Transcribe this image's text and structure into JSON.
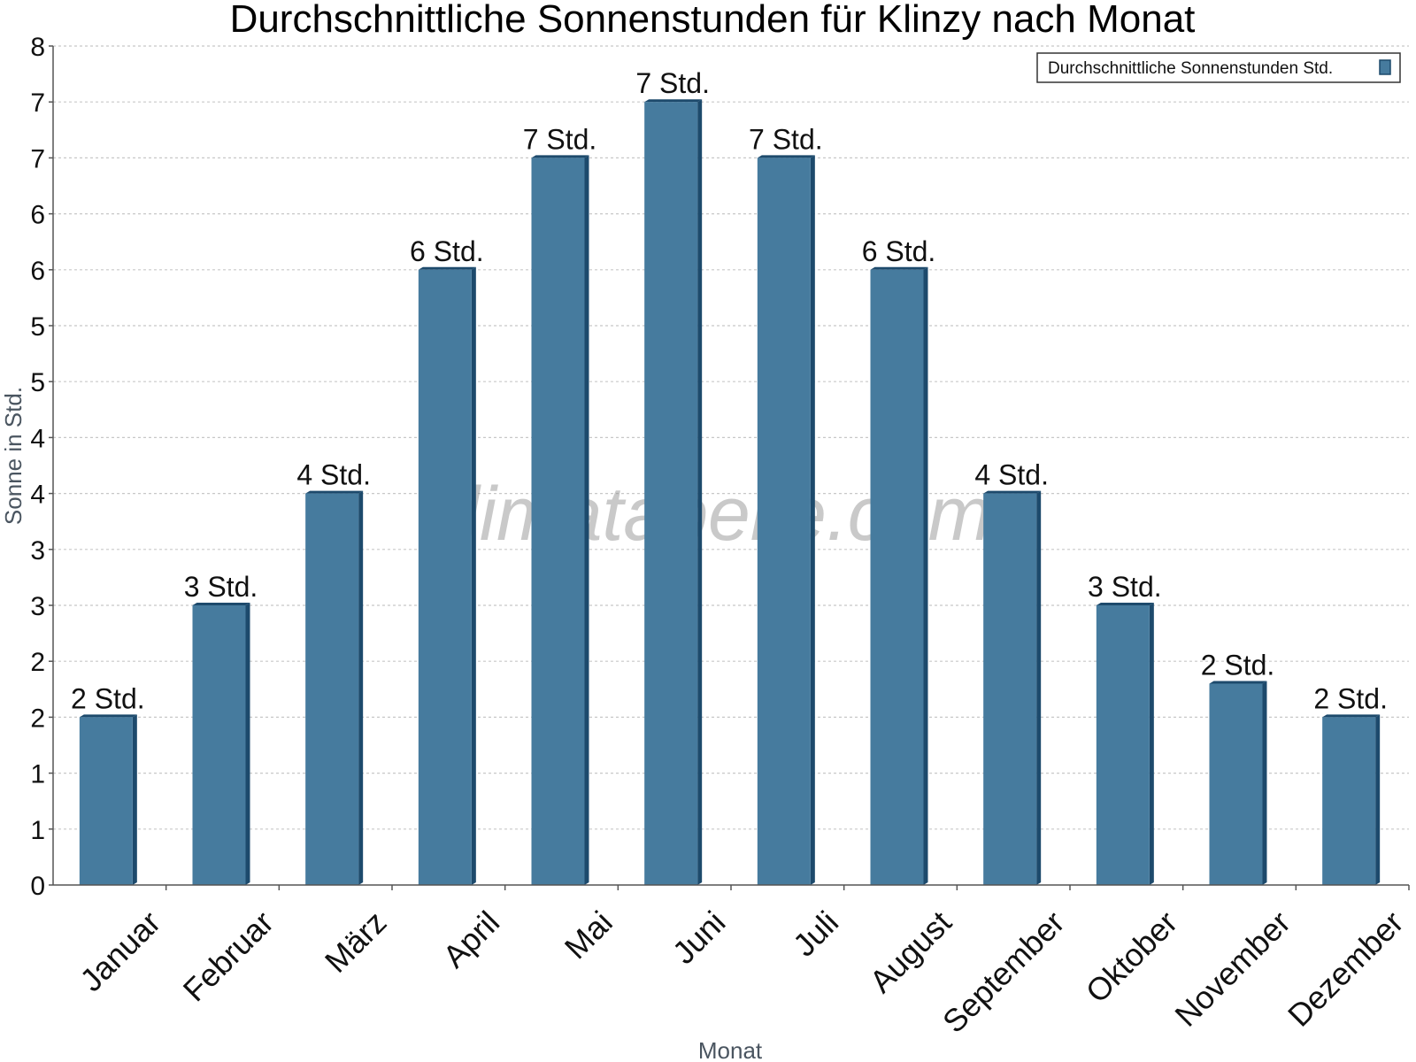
{
  "chart_data": {
    "type": "bar",
    "title": "Durchschnittliche Sonnenstunden für Klinzy nach Monat",
    "xlabel": "Monat",
    "ylabel": "Sonne in Std.",
    "categories": [
      "Januar",
      "Februar",
      "März",
      "April",
      "Mai",
      "Juni",
      "Juli",
      "August",
      "September",
      "Oktober",
      "November",
      "Dezember"
    ],
    "series": [
      {
        "name": "Durchschnittliche Sonnenstunden Std.",
        "values": [
          1.5,
          2.5,
          3.5,
          5.5,
          6.5,
          7.0,
          6.5,
          5.5,
          3.5,
          2.5,
          1.8,
          1.5
        ],
        "data_labels": [
          "2 Std.",
          "3 Std.",
          "4 Std.",
          "6 Std.",
          "7 Std.",
          "7 Std.",
          "7 Std.",
          "6 Std.",
          "4 Std.",
          "3 Std.",
          "2 Std.",
          "2 Std."
        ],
        "color": "#467b9e"
      }
    ],
    "ylim": [
      0,
      7.5
    ],
    "yticks": [
      0,
      0.5,
      1,
      1.5,
      2,
      2.5,
      3,
      3.5,
      4,
      4.5,
      5,
      5.5,
      6,
      6.5,
      7,
      7.5
    ],
    "ytick_labels": [
      "0",
      "1",
      "1",
      "2",
      "2",
      "3",
      "3",
      "4",
      "4",
      "5",
      "5",
      "6",
      "6",
      "7",
      "7",
      "8"
    ],
    "grid": true,
    "legend_position": "top-right",
    "watermark": "klimatabelle.com",
    "colors": {
      "bar": "#467b9e",
      "bar_side": "#1d4a6c",
      "bar_top": "#1d4a6c",
      "grid": "#c8c8c8",
      "axis": "#555555"
    }
  }
}
